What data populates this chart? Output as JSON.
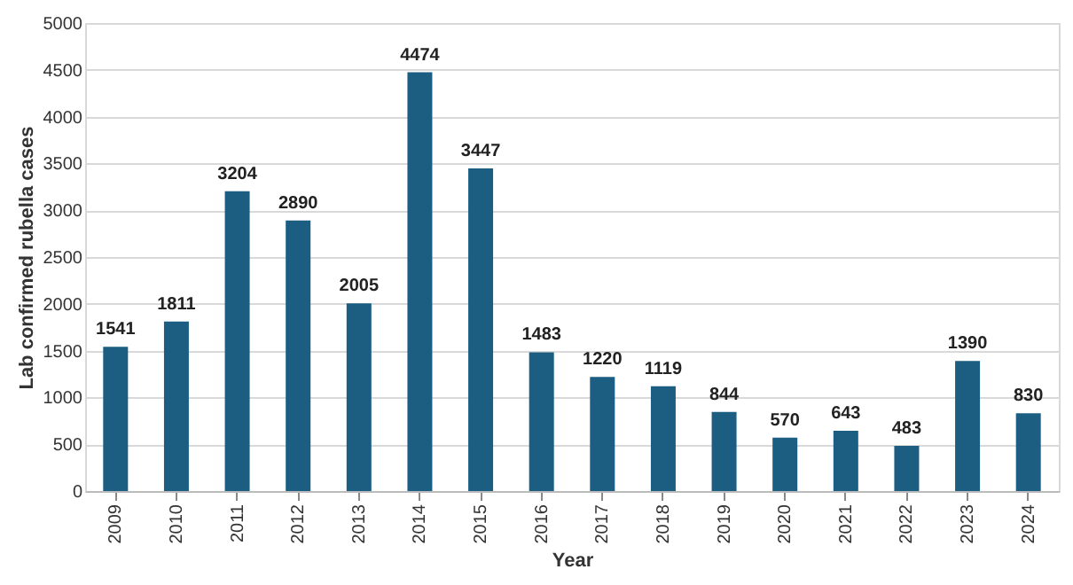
{
  "chart_data": {
    "type": "bar",
    "xlabel": "Year",
    "ylabel": "Lab confirmed rubella cases",
    "categories": [
      "2009",
      "2010",
      "2011",
      "2012",
      "2013",
      "2014",
      "2015",
      "2016",
      "2017",
      "2018",
      "2019",
      "2020",
      "2021",
      "2022",
      "2023",
      "2024"
    ],
    "values": [
      1541,
      1811,
      3204,
      2890,
      2005,
      4474,
      3447,
      1483,
      1220,
      1119,
      844,
      570,
      643,
      483,
      1390,
      830
    ],
    "color": "#1b5e82",
    "ylim": [
      0,
      5000
    ],
    "yticks": [
      0,
      500,
      1000,
      1500,
      2000,
      2500,
      3000,
      3500,
      4000,
      4500,
      5000
    ],
    "grid": "y",
    "data_labels": true
  }
}
